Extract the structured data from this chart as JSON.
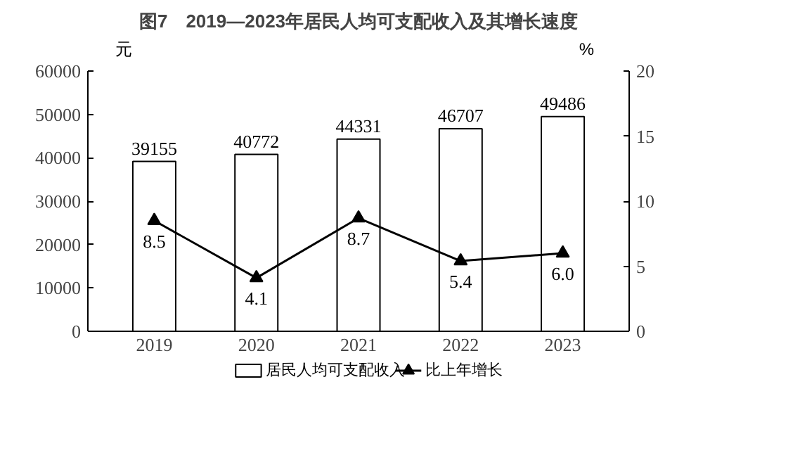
{
  "chart_data": {
    "type": "bar",
    "title": "图7　2019—2023年居民人均可支配收入及其增长速度",
    "categories": [
      "2019",
      "2020",
      "2021",
      "2022",
      "2023"
    ],
    "ylabel": "元",
    "y2label": "%",
    "ylim": [
      0,
      60000
    ],
    "yticks": [
      0,
      10000,
      20000,
      30000,
      40000,
      50000,
      60000
    ],
    "y2lim": [
      0,
      20
    ],
    "y2ticks": [
      0,
      5,
      10,
      15,
      20
    ],
    "series": [
      {
        "name": "居民人均可支配收入",
        "color": "#ffffff",
        "values": [
          39155,
          40772,
          44331,
          46707,
          49486
        ]
      },
      {
        "name": "比上年增长",
        "type": "line",
        "axis": "y2",
        "color": "#000000",
        "marker": "triangle",
        "values": [
          8.5,
          4.1,
          8.7,
          5.4,
          6.0
        ],
        "value_labels": [
          "8.5",
          "4.1",
          "8.7",
          "5.4",
          "6.0"
        ]
      }
    ],
    "data_labels": true,
    "legend": "bottom"
  }
}
